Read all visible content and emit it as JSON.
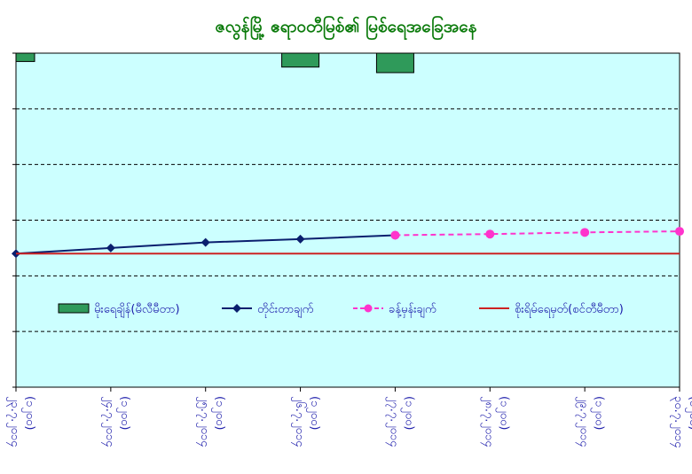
{
  "chart_data": {
    "type": "line",
    "title": "ဇလွန်မြို့ ဧရာဝတီမြစ်၏ မြစ်ရေအခြေအနေ",
    "categories": [
      "၂၃.၇.၂၀၁၄\n(၁၂၀၀)",
      "၂၄.၇.၂၀၁၄\n(၁၂၀၀)",
      "၂၅.၇.၂၀၁၄\n(၁၂၀၀)",
      "၂၆.၇.၂၀၁၄\n(၁၂၀၀)",
      "၂၇.၇.၂၀၁၄\n(၁၂၀၀)",
      "၂၈.၇.၂၀၁၄\n(၁၂၀၀)",
      "၂၉.၇.၂၀၁၄\n(၁၂၀၀)",
      "၃၀.၇.၂၀၁၄\n(၁၂၀၀)"
    ],
    "series": [
      {
        "name": "မိုးရေချိန်(မီလီမီတာ)",
        "kind": "bar",
        "color": "#2f9a5a",
        "values": [
          0.3,
          null,
          null,
          0.5,
          0.7,
          null,
          null,
          null
        ]
      },
      {
        "name": "တိုင်းတာချက်",
        "kind": "line",
        "color": "#0a1f6e",
        "values": [
          2.4,
          2.5,
          2.6,
          2.66,
          2.73,
          null,
          null,
          null
        ]
      },
      {
        "name": "ခန့်မှန်းချက်",
        "kind": "dashed-line",
        "color": "#ff33cc",
        "values": [
          null,
          null,
          null,
          null,
          2.73,
          2.75,
          2.78,
          2.8
        ]
      },
      {
        "name": "စိုးရိမ်ရေမှတ်(စင်တီမီတာ)",
        "kind": "hline",
        "color": "#cc2222",
        "values": [
          2.4,
          2.4,
          2.4,
          2.4,
          2.4,
          2.4,
          2.4,
          2.4
        ]
      }
    ],
    "ylim": [
      0,
      6
    ],
    "yticks": [
      0,
      1,
      2,
      3,
      4,
      5,
      6
    ],
    "grid": true,
    "legend_position": "inside-lower-middle",
    "colors": {
      "plot_bg": "#ccffff",
      "frame": "#000000"
    }
  }
}
